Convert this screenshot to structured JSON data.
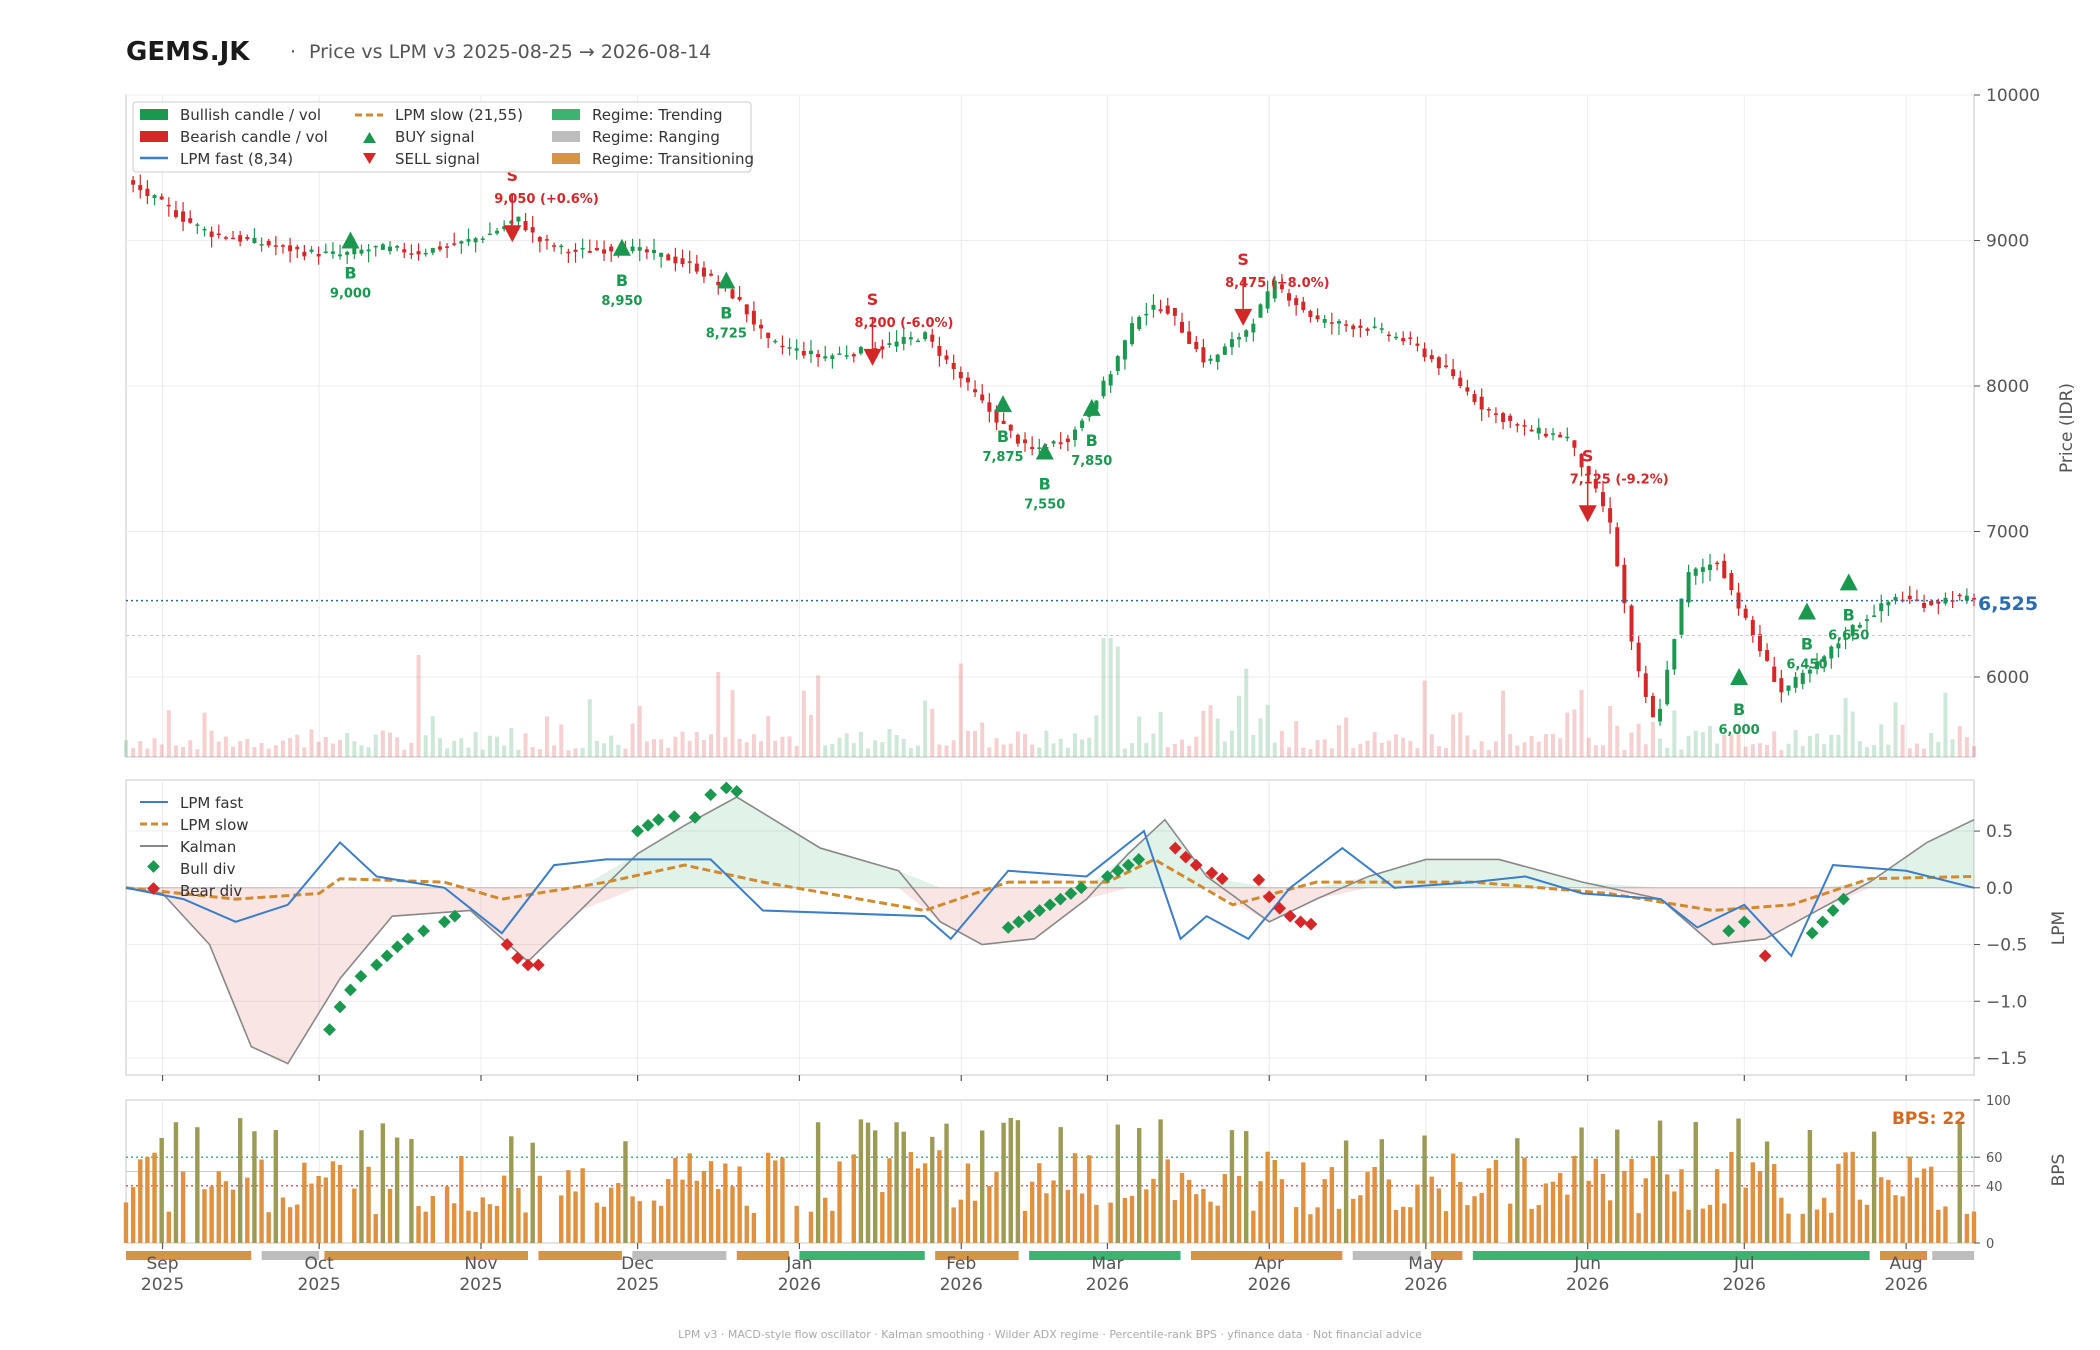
{
  "header": {
    "ticker": "GEMS.JK",
    "separator": "·",
    "subtitle": "Price vs LPM v3  2025-08-25 → 2026-08-14"
  },
  "footer": "LPM v3  ·  MACD-style flow oscillator  ·  Kalman smoothing  ·  Wilder ADX regime  ·  Percentile-rank BPS  ·  yfinance data  ·  Not financial advice",
  "colors": {
    "bull": "#1a9850",
    "bear": "#d62728",
    "lpm_fast": "#3a7dc9",
    "lpm_slow": "#d28a2f",
    "kalman": "#888888",
    "regime_trending": "#3cb371",
    "regime_ranging": "#bdbdbd",
    "regime_transitioning": "#d89446",
    "bps_bar": "#e0913f",
    "bps_bar_strong": "#9b9b55",
    "last_price": "#2b6cb0",
    "bps_label": "#d2691e"
  },
  "price_panel": {
    "ylabel": "Price (IDR)",
    "yticks": [
      6000,
      7000,
      8000,
      9000,
      10000
    ],
    "last_price_label": "6,525",
    "legend": [
      {
        "label": "Bullish candle / vol",
        "kind": "bull"
      },
      {
        "label": "Bearish candle / vol",
        "kind": "bear"
      },
      {
        "label": "LPM fast (8,34)",
        "kind": "fast"
      },
      {
        "label": "LPM slow (21,55)",
        "kind": "slow"
      },
      {
        "label": "BUY signal",
        "kind": "buy"
      },
      {
        "label": "SELL signal",
        "kind": "sell"
      },
      {
        "label": "Regime: Trending",
        "kind": "trending"
      },
      {
        "label": "Regime: Ranging",
        "kind": "ranging"
      },
      {
        "label": "Regime: Transitioning",
        "kind": "transitioning"
      }
    ]
  },
  "lpm_panel": {
    "ylabel": "LPM",
    "yticks": [
      "0.5",
      "0.0",
      "−0.5",
      "−1.0",
      "−1.5"
    ],
    "legend": [
      {
        "label": "LPM fast",
        "kind": "fast"
      },
      {
        "label": "LPM slow",
        "kind": "slow"
      },
      {
        "label": "Kalman",
        "kind": "kalman"
      },
      {
        "label": "Bull div",
        "kind": "bulldiv"
      },
      {
        "label": "Bear div",
        "kind": "beardiv"
      }
    ]
  },
  "bps_panel": {
    "ylabel": "BPS",
    "yticks": [
      "100",
      "60",
      "40",
      "0"
    ],
    "current_label": "BPS: 22"
  },
  "x_axis": {
    "months": [
      {
        "m": "Sep",
        "y": "2025"
      },
      {
        "m": "Oct",
        "y": "2025"
      },
      {
        "m": "Nov",
        "y": "2025"
      },
      {
        "m": "Dec",
        "y": "2025"
      },
      {
        "m": "Jan",
        "y": "2026"
      },
      {
        "m": "Feb",
        "y": "2026"
      },
      {
        "m": "Mar",
        "y": "2026"
      },
      {
        "m": "Apr",
        "y": "2026"
      },
      {
        "m": "May",
        "y": "2026"
      },
      {
        "m": "Jun",
        "y": "2026"
      },
      {
        "m": "Jul",
        "y": "2026"
      },
      {
        "m": "Aug",
        "y": "2026"
      }
    ]
  },
  "chart_data": {
    "type": "line",
    "x_range": [
      "2025-08-25",
      "2026-08-14"
    ],
    "price_ylim": [
      5450,
      10000
    ],
    "lpm_ylim": [
      -1.65,
      0.95
    ],
    "bps_ylim": [
      0,
      100
    ],
    "bps_lines": [
      60,
      40
    ],
    "last_price": 6525,
    "price_path": [
      [
        "2025-08-25",
        9400
      ],
      [
        "2025-09-01",
        9250
      ],
      [
        "2025-09-05",
        9150
      ],
      [
        "2025-09-10",
        9050
      ],
      [
        "2025-09-20",
        8980
      ],
      [
        "2025-09-28",
        8920
      ],
      [
        "2025-10-05",
        8900
      ],
      [
        "2025-10-12",
        8950
      ],
      [
        "2025-10-20",
        8920
      ],
      [
        "2025-10-28",
        8980
      ],
      [
        "2025-11-03",
        9050
      ],
      [
        "2025-11-08",
        9150
      ],
      [
        "2025-11-12",
        9000
      ],
      [
        "2025-11-18",
        8920
      ],
      [
        "2025-11-28",
        8950
      ],
      [
        "2025-12-05",
        8900
      ],
      [
        "2025-12-12",
        8820
      ],
      [
        "2025-12-20",
        8600
      ],
      [
        "2025-12-26",
        8300
      ],
      [
        "2026-01-05",
        8200
      ],
      [
        "2026-01-15",
        8250
      ],
      [
        "2026-01-25",
        8350
      ],
      [
        "2026-02-01",
        8050
      ],
      [
        "2026-02-07",
        7800
      ],
      [
        "2026-02-14",
        7550
      ],
      [
        "2026-02-22",
        7650
      ],
      [
        "2026-03-01",
        8050
      ],
      [
        "2026-03-07",
        8500
      ],
      [
        "2026-03-12",
        8550
      ],
      [
        "2026-03-20",
        8150
      ],
      [
        "2026-03-28",
        8400
      ],
      [
        "2026-04-02",
        8700
      ],
      [
        "2026-04-10",
        8450
      ],
      [
        "2026-04-20",
        8400
      ],
      [
        "2026-04-28",
        8300
      ],
      [
        "2026-05-05",
        8100
      ],
      [
        "2026-05-12",
        7850
      ],
      [
        "2026-05-20",
        7700
      ],
      [
        "2026-05-28",
        7650
      ],
      [
        "2026-06-05",
        7100
      ],
      [
        "2026-06-10",
        6100
      ],
      [
        "2026-06-14",
        5650
      ],
      [
        "2026-06-20",
        6700
      ],
      [
        "2026-06-26",
        6800
      ],
      [
        "2026-07-01",
        6400
      ],
      [
        "2026-07-08",
        5900
      ],
      [
        "2026-07-14",
        6050
      ],
      [
        "2026-07-22",
        6350
      ],
      [
        "2026-07-30",
        6550
      ],
      [
        "2026-08-05",
        6500
      ],
      [
        "2026-08-10",
        6550
      ],
      [
        "2026-08-14",
        6525
      ]
    ],
    "signals": [
      {
        "type": "BUY",
        "date": "2025-10-07",
        "price": 9000,
        "label": "B",
        "value": "9,000"
      },
      {
        "type": "SELL",
        "date": "2025-11-07",
        "price": 9050,
        "label": "S",
        "value": "9,050 (+0.6%)"
      },
      {
        "type": "BUY",
        "date": "2025-11-28",
        "price": 8950,
        "label": "B",
        "value": "8,950"
      },
      {
        "type": "BUY",
        "date": "2025-12-18",
        "price": 8725,
        "label": "B",
        "value": "8,725"
      },
      {
        "type": "SELL",
        "date": "2026-01-15",
        "price": 8200,
        "label": "S",
        "value": "8,200 (-6.0%)"
      },
      {
        "type": "BUY",
        "date": "2026-02-09",
        "price": 7875,
        "label": "B",
        "value": "7,875"
      },
      {
        "type": "BUY",
        "date": "2026-02-17",
        "price": 7550,
        "label": "B",
        "value": "7,550"
      },
      {
        "type": "BUY",
        "date": "2026-02-26",
        "price": 7850,
        "label": "B",
        "value": "7,850"
      },
      {
        "type": "SELL",
        "date": "2026-03-27",
        "price": 8475,
        "label": "S",
        "value": "8,475 (+8.0%)"
      },
      {
        "type": "SELL",
        "date": "2026-06-01",
        "price": 7125,
        "label": "S",
        "value": "7,125 (-9.2%)"
      },
      {
        "type": "BUY",
        "date": "2026-06-30",
        "price": 6000,
        "label": "B",
        "value": "6,000"
      },
      {
        "type": "BUY",
        "date": "2026-07-13",
        "price": 6450,
        "label": "B",
        "value": "6,450"
      },
      {
        "type": "BUY",
        "date": "2026-07-21",
        "price": 6650,
        "label": "B",
        "value": "6,650"
      }
    ],
    "volume_spikes": [
      [
        "2025-09-02",
        0.55
      ],
      [
        "2025-10-20",
        0.6
      ],
      [
        "2025-12-16",
        0.5
      ],
      [
        "2026-01-05",
        0.48
      ],
      [
        "2026-02-01",
        0.55
      ],
      [
        "2026-03-01",
        0.7
      ],
      [
        "2026-03-03",
        0.65
      ],
      [
        "2026-03-28",
        0.52
      ],
      [
        "2026-05-01",
        0.45
      ],
      [
        "2026-06-05",
        0.3
      ],
      [
        "2026-07-20",
        0.3
      ]
    ],
    "series": [
      {
        "name": "LPM fast",
        "points": [
          [
            "2025-08-25",
            0.0
          ],
          [
            "2025-09-05",
            -0.1
          ],
          [
            "2025-09-15",
            -0.3
          ],
          [
            "2025-09-25",
            -0.15
          ],
          [
            "2025-10-05",
            0.4
          ],
          [
            "2025-10-12",
            0.1
          ],
          [
            "2025-10-25",
            0.0
          ],
          [
            "2025-11-05",
            -0.4
          ],
          [
            "2025-11-15",
            0.2
          ],
          [
            "2025-11-25",
            0.25
          ],
          [
            "2025-12-15",
            0.25
          ],
          [
            "2025-12-25",
            -0.2
          ],
          [
            "2026-01-25",
            -0.25
          ],
          [
            "2026-01-30",
            -0.45
          ],
          [
            "2026-02-10",
            0.15
          ],
          [
            "2026-02-25",
            0.1
          ],
          [
            "2026-03-08",
            0.5
          ],
          [
            "2026-03-15",
            -0.45
          ],
          [
            "2026-03-20",
            -0.25
          ],
          [
            "2026-03-28",
            -0.45
          ],
          [
            "2026-04-05",
            0.0
          ],
          [
            "2026-04-15",
            0.35
          ],
          [
            "2026-04-25",
            0.0
          ],
          [
            "2026-05-10",
            0.05
          ],
          [
            "2026-05-20",
            0.1
          ],
          [
            "2026-05-31",
            -0.05
          ],
          [
            "2026-06-15",
            -0.1
          ],
          [
            "2026-06-22",
            -0.35
          ],
          [
            "2026-07-01",
            -0.15
          ],
          [
            "2026-07-10",
            -0.6
          ],
          [
            "2026-07-18",
            0.2
          ],
          [
            "2026-08-01",
            0.15
          ],
          [
            "2026-08-14",
            0.0
          ]
        ]
      },
      {
        "name": "LPM slow",
        "points": [
          [
            "2025-08-25",
            0.0
          ],
          [
            "2025-09-15",
            -0.1
          ],
          [
            "2025-10-01",
            -0.05
          ],
          [
            "2025-10-05",
            0.08
          ],
          [
            "2025-10-25",
            0.05
          ],
          [
            "2025-11-05",
            -0.1
          ],
          [
            "2025-11-25",
            0.05
          ],
          [
            "2025-12-10",
            0.2
          ],
          [
            "2025-12-25",
            0.05
          ],
          [
            "2026-01-25",
            -0.2
          ],
          [
            "2026-02-10",
            0.05
          ],
          [
            "2026-03-01",
            0.05
          ],
          [
            "2026-03-10",
            0.25
          ],
          [
            "2026-03-25",
            -0.15
          ],
          [
            "2026-04-10",
            0.05
          ],
          [
            "2026-05-10",
            0.05
          ],
          [
            "2026-06-05",
            -0.05
          ],
          [
            "2026-06-25",
            -0.2
          ],
          [
            "2026-07-10",
            -0.15
          ],
          [
            "2026-07-25",
            0.08
          ],
          [
            "2026-08-14",
            0.1
          ]
        ]
      },
      {
        "name": "Kalman",
        "points": [
          [
            "2025-08-25",
            0.0
          ],
          [
            "2025-09-01",
            -0.05
          ],
          [
            "2025-09-10",
            -0.5
          ],
          [
            "2025-09-18",
            -1.4
          ],
          [
            "2025-09-25",
            -1.55
          ],
          [
            "2025-10-05",
            -0.8
          ],
          [
            "2025-10-15",
            -0.25
          ],
          [
            "2025-10-30",
            -0.2
          ],
          [
            "2025-11-10",
            -0.65
          ],
          [
            "2025-11-20",
            -0.2
          ],
          [
            "2025-12-01",
            0.3
          ],
          [
            "2025-12-10",
            0.55
          ],
          [
            "2025-12-20",
            0.8
          ],
          [
            "2026-01-05",
            0.35
          ],
          [
            "2026-01-20",
            0.15
          ],
          [
            "2026-01-28",
            -0.3
          ],
          [
            "2026-02-05",
            -0.5
          ],
          [
            "2026-02-15",
            -0.45
          ],
          [
            "2026-02-25",
            -0.1
          ],
          [
            "2026-03-05",
            0.3
          ],
          [
            "2026-03-12",
            0.6
          ],
          [
            "2026-03-20",
            0.1
          ],
          [
            "2026-04-01",
            -0.3
          ],
          [
            "2026-04-10",
            -0.1
          ],
          [
            "2026-04-20",
            0.1
          ],
          [
            "2026-05-01",
            0.25
          ],
          [
            "2026-05-15",
            0.25
          ],
          [
            "2026-05-31",
            0.05
          ],
          [
            "2026-06-15",
            -0.1
          ],
          [
            "2026-06-25",
            -0.5
          ],
          [
            "2026-07-05",
            -0.45
          ],
          [
            "2026-07-15",
            -0.2
          ],
          [
            "2026-07-25",
            0.05
          ],
          [
            "2026-08-05",
            0.4
          ],
          [
            "2026-08-14",
            0.6
          ]
        ]
      }
    ],
    "bull_div": [
      [
        "2025-10-03",
        -1.25
      ],
      [
        "2025-10-05",
        -1.05
      ],
      [
        "2025-10-07",
        -0.9
      ],
      [
        "2025-10-09",
        -0.78
      ],
      [
        "2025-10-12",
        -0.68
      ],
      [
        "2025-10-14",
        -0.6
      ],
      [
        "2025-10-16",
        -0.52
      ],
      [
        "2025-10-18",
        -0.45
      ],
      [
        "2025-10-21",
        -0.38
      ],
      [
        "2025-10-25",
        -0.3
      ],
      [
        "2025-10-27",
        -0.25
      ],
      [
        "2025-12-01",
        0.5
      ],
      [
        "2025-12-03",
        0.55
      ],
      [
        "2025-12-05",
        0.6
      ],
      [
        "2025-12-08",
        0.63
      ],
      [
        "2025-12-12",
        0.62
      ],
      [
        "2025-12-15",
        0.82
      ],
      [
        "2025-12-18",
        0.88
      ],
      [
        "2025-12-20",
        0.85
      ],
      [
        "2026-02-10",
        -0.35
      ],
      [
        "2026-02-12",
        -0.3
      ],
      [
        "2026-02-14",
        -0.25
      ],
      [
        "2026-02-16",
        -0.2
      ],
      [
        "2026-02-18",
        -0.15
      ],
      [
        "2026-02-20",
        -0.1
      ],
      [
        "2026-02-22",
        -0.05
      ],
      [
        "2026-02-24",
        0.0
      ],
      [
        "2026-03-01",
        0.1
      ],
      [
        "2026-03-03",
        0.15
      ],
      [
        "2026-03-05",
        0.2
      ],
      [
        "2026-03-07",
        0.25
      ],
      [
        "2026-06-28",
        -0.38
      ],
      [
        "2026-07-01",
        -0.3
      ],
      [
        "2026-07-14",
        -0.4
      ],
      [
        "2026-07-16",
        -0.3
      ],
      [
        "2026-07-18",
        -0.2
      ],
      [
        "2026-07-20",
        -0.1
      ]
    ],
    "bear_div": [
      [
        "2025-11-06",
        -0.5
      ],
      [
        "2025-11-08",
        -0.62
      ],
      [
        "2025-11-10",
        -0.68
      ],
      [
        "2025-11-12",
        -0.68
      ],
      [
        "2026-03-14",
        0.35
      ],
      [
        "2026-03-16",
        0.27
      ],
      [
        "2026-03-18",
        0.2
      ],
      [
        "2026-03-21",
        0.13
      ],
      [
        "2026-03-23",
        0.08
      ],
      [
        "2026-03-30",
        0.07
      ],
      [
        "2026-04-01",
        -0.08
      ],
      [
        "2026-04-03",
        -0.18
      ],
      [
        "2026-04-05",
        -0.25
      ],
      [
        "2026-04-07",
        -0.3
      ],
      [
        "2026-04-09",
        -0.32
      ],
      [
        "2026-07-05",
        -0.6
      ]
    ],
    "regime_segments": [
      {
        "start": "2025-08-25",
        "end": "2025-09-18",
        "regime": "Transitioning"
      },
      {
        "start": "2025-09-20",
        "end": "2025-10-01",
        "regime": "Ranging"
      },
      {
        "start": "2025-10-02",
        "end": "2025-11-10",
        "regime": "Transitioning"
      },
      {
        "start": "2025-11-12",
        "end": "2025-11-28",
        "regime": "Transitioning"
      },
      {
        "start": "2025-11-30",
        "end": "2025-12-18",
        "regime": "Ranging"
      },
      {
        "start": "2025-12-20",
        "end": "2025-12-30",
        "regime": "Transitioning"
      },
      {
        "start": "2026-01-01",
        "end": "2026-01-25",
        "regime": "Trending"
      },
      {
        "start": "2026-01-27",
        "end": "2026-02-12",
        "regime": "Transitioning"
      },
      {
        "start": "2026-02-14",
        "end": "2026-03-15",
        "regime": "Trending"
      },
      {
        "start": "2026-03-17",
        "end": "2026-04-15",
        "regime": "Transitioning"
      },
      {
        "start": "2026-04-17",
        "end": "2026-04-30",
        "regime": "Ranging"
      },
      {
        "start": "2026-05-02",
        "end": "2026-05-08",
        "regime": "Transitioning"
      },
      {
        "start": "2026-05-10",
        "end": "2026-07-25",
        "regime": "Trending"
      },
      {
        "start": "2026-07-27",
        "end": "2026-08-05",
        "regime": "Transitioning"
      },
      {
        "start": "2026-08-06",
        "end": "2026-08-14",
        "regime": "Ranging"
      }
    ],
    "bps_current": 22
  }
}
